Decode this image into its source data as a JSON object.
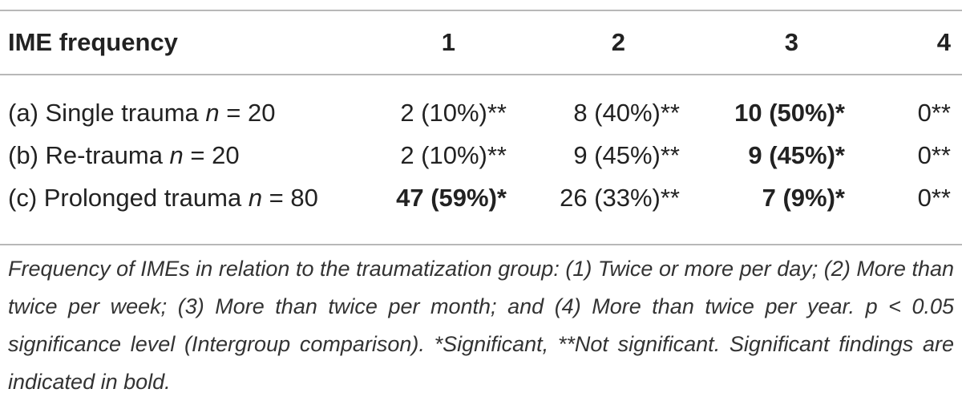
{
  "table": {
    "header": {
      "label": "IME frequency",
      "cols": [
        "1",
        "2",
        "3",
        "4"
      ]
    },
    "rows": [
      {
        "label_prefix": "(a) Single trauma ",
        "n_symbol": "n",
        "label_suffix": " = 20",
        "cells": [
          {
            "text": "2 (10%)**",
            "bold": false
          },
          {
            "text": "8 (40%)**",
            "bold": false
          },
          {
            "text": "10 (50%)*",
            "bold": true
          },
          {
            "text": "0**",
            "bold": false
          }
        ]
      },
      {
        "label_prefix": "(b) Re-trauma ",
        "n_symbol": "n",
        "label_suffix": " = 20",
        "cells": [
          {
            "text": "2 (10%)**",
            "bold": false
          },
          {
            "text": "9 (45%)**",
            "bold": false
          },
          {
            "text": "9 (45%)*",
            "bold": true
          },
          {
            "text": "0**",
            "bold": false
          }
        ]
      },
      {
        "label_prefix": "(c) Prolonged trauma ",
        "n_symbol": "n",
        "label_suffix": " = 80",
        "cells": [
          {
            "text": "47 (59%)*",
            "bold": true
          },
          {
            "text": "26 (33%)**",
            "bold": false
          },
          {
            "text": "7 (9%)*",
            "bold": true
          },
          {
            "text": "0**",
            "bold": false
          }
        ]
      }
    ],
    "footnote": "Frequency of IMEs in relation to the traumatization group: (1) Twice or more per day; (2) More than twice per week; (3) More than twice per month; and (4) More than twice per year. p < 0.05 significance level (Intergroup comparison). *Significant, **Not significant. Significant findings are indicated in bold."
  }
}
